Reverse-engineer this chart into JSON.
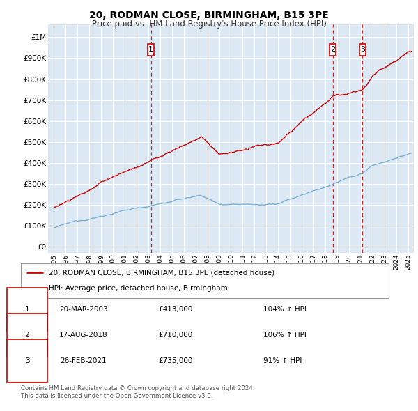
{
  "title": "20, RODMAN CLOSE, BIRMINGHAM, B15 3PE",
  "subtitle": "Price paid vs. HM Land Registry's House Price Index (HPI)",
  "bg_color": "#dce9f5",
  "red_color": "#cc0000",
  "blue_color": "#7bafd4",
  "grid_color": "#ffffff",
  "sale_points": [
    {
      "date_num": 2003.22,
      "price": 413000,
      "label": "1",
      "marker_y": 940000
    },
    {
      "date_num": 2018.63,
      "price": 710000,
      "label": "2",
      "marker_y": 940000
    },
    {
      "date_num": 2021.15,
      "price": 735000,
      "label": "3",
      "marker_y": 940000
    }
  ],
  "yticks": [
    0,
    100000,
    200000,
    300000,
    400000,
    500000,
    600000,
    700000,
    800000,
    900000,
    1000000
  ],
  "ytick_labels": [
    "£0",
    "£100K",
    "£200K",
    "£300K",
    "£400K",
    "£500K",
    "£600K",
    "£700K",
    "£800K",
    "£900K",
    "£1M"
  ],
  "xlim": [
    1994.5,
    2025.5
  ],
  "ylim": [
    -30000,
    1060000
  ],
  "legend_entries": [
    "20, RODMAN CLOSE, BIRMINGHAM, B15 3PE (detached house)",
    "HPI: Average price, detached house, Birmingham"
  ],
  "table_rows": [
    {
      "num": "1",
      "date": "20-MAR-2003",
      "price": "£413,000",
      "hpi": "104% ↑ HPI"
    },
    {
      "num": "2",
      "date": "17-AUG-2018",
      "price": "£710,000",
      "hpi": "106% ↑ HPI"
    },
    {
      "num": "3",
      "date": "26-FEB-2021",
      "price": "£735,000",
      "hpi": "91% ↑ HPI"
    }
  ],
  "footer": "Contains HM Land Registry data © Crown copyright and database right 2024.\nThis data is licensed under the Open Government Licence v3.0.",
  "xticks": [
    1995,
    1996,
    1997,
    1998,
    1999,
    2000,
    2001,
    2002,
    2003,
    2004,
    2005,
    2006,
    2007,
    2008,
    2009,
    2010,
    2011,
    2012,
    2013,
    2014,
    2015,
    2016,
    2017,
    2018,
    2019,
    2020,
    2021,
    2022,
    2023,
    2024,
    2025
  ]
}
